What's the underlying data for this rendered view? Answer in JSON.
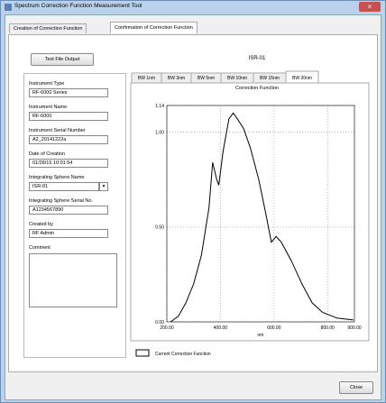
{
  "window": {
    "title": "Spectrum Correction Function Measurement Tool"
  },
  "tabs": [
    "Creation of Correction Function",
    "Confirmation of Correction Function"
  ],
  "output_button": "Text File Output",
  "fields": [
    {
      "label": "Instrument Type",
      "value": "RF-6000 Series"
    },
    {
      "label": "Instrument Name",
      "value": "RF-6000"
    },
    {
      "label": "Instrument Serial Number",
      "value": "A2_20141222a"
    },
    {
      "label": "Date of Creation",
      "value": "01/28/15 10:01:54"
    },
    {
      "label": "Integrating Sphere Name",
      "value": "ISR-01"
    },
    {
      "label": "Integrating Sphere Serial No.",
      "value": "A1234567890"
    },
    {
      "label": "Created by",
      "value": "RF Admin"
    }
  ],
  "comment_label": "Comment",
  "header": "ISR-01",
  "bw_tabs": [
    "BW 1nm",
    "BW 3nm",
    "BW 5nm",
    "BW 10nm",
    "BW 15nm",
    "BW 20nm"
  ],
  "close_button": "Close",
  "chart_data": {
    "type": "line",
    "title": "Correction Function",
    "x_label": "nm",
    "x": [
      214,
      243,
      271,
      300,
      329,
      357,
      371,
      386,
      394,
      410,
      432,
      448,
      463,
      486,
      511,
      543,
      568,
      590,
      608,
      627,
      665,
      704,
      742,
      781,
      835,
      896
    ],
    "series": [
      {
        "name": "Current Correction Function",
        "color": "#000000",
        "values": [
          0.0,
          0.03,
          0.1,
          0.2,
          0.35,
          0.6,
          0.84,
          0.75,
          0.72,
          0.9,
          1.07,
          1.1,
          1.07,
          1.02,
          0.92,
          0.75,
          0.58,
          0.42,
          0.45,
          0.42,
          0.32,
          0.2,
          0.1,
          0.05,
          0.02,
          0.01
        ]
      }
    ],
    "xlim": [
      200,
      900
    ],
    "ylim": [
      0,
      1.14
    ],
    "xticks": [
      {
        "value": 200,
        "label": "200.00"
      },
      {
        "value": 400,
        "label": "400.00"
      },
      {
        "value": 600,
        "label": "600.00"
      },
      {
        "value": 800,
        "label": "800.00"
      },
      {
        "value": 900,
        "label": "900.00"
      }
    ],
    "yticks": [
      {
        "value": 0,
        "label": "0.00"
      },
      {
        "value": 0.5,
        "label": "0.50"
      },
      {
        "value": 1,
        "label": "1.00"
      },
      {
        "value": 1.14,
        "label": "1.14"
      }
    ],
    "grid": true
  }
}
